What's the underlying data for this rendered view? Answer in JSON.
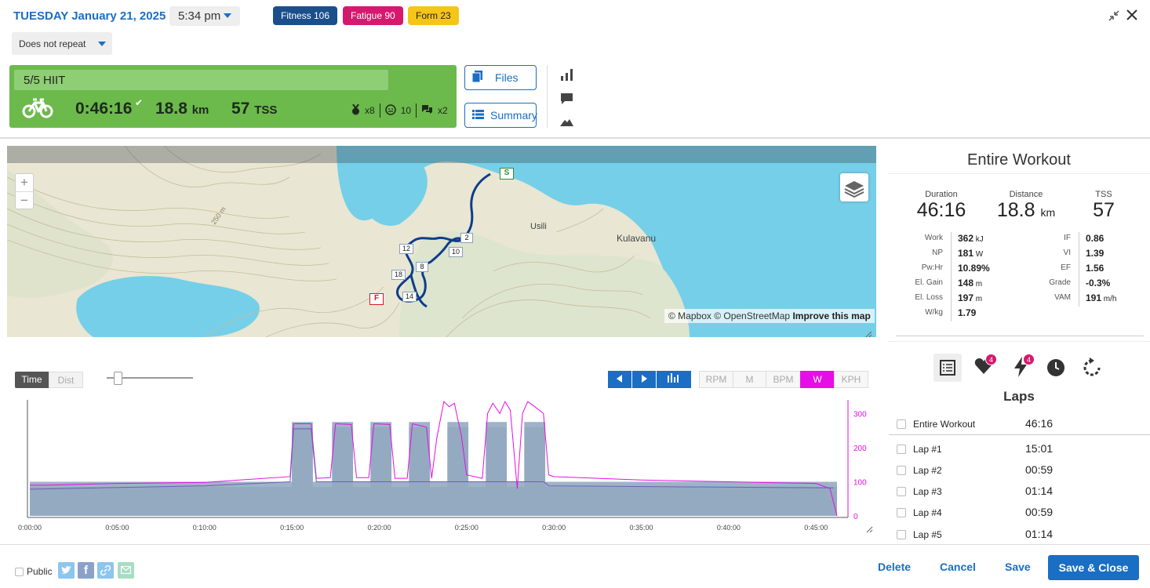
{
  "header": {
    "date": "TUESDAY January 21, 2025",
    "time": "5:34 pm",
    "badges": {
      "fitness": "Fitness 106",
      "fatigue": "Fatigue 90",
      "form": "Form 23"
    },
    "repeat": "Does not repeat"
  },
  "workout": {
    "title": "5/5 HIIT",
    "duration": "0:46:16",
    "distance_value": "18.8",
    "distance_unit": "km",
    "tss_value": "57",
    "tss_unit": "TSS",
    "medals": "x8",
    "rpe": "10",
    "comments": "x2"
  },
  "buttons": {
    "files": "Files",
    "summary": "Summary"
  },
  "map": {
    "attribution_prefix": "© Mapbox © OpenStreetMap",
    "attribution_link": "Improve this map",
    "labels": {
      "usili": "Usili",
      "kulavanu": "Kulavanu",
      "contour": "250 m"
    },
    "start": "S",
    "finish": "F",
    "lap_markers": [
      "2",
      "10",
      "12",
      "8",
      "18",
      "14"
    ],
    "zoom_in": "+",
    "zoom_out": "−"
  },
  "chart_controls": {
    "mode_time": "Time",
    "mode_dist": "Dist",
    "units": [
      "RPM",
      "M",
      "BPM",
      "W",
      "KPH"
    ],
    "active_unit": "W",
    "active_color": "#e60ee6"
  },
  "chart_data": {
    "type": "area",
    "xlabel": "",
    "ylabel": "",
    "x_ticks": [
      "0:00:00",
      "0:05:00",
      "0:10:00",
      "0:15:00",
      "0:20:00",
      "0:25:00",
      "0:30:00",
      "0:35:00",
      "0:40:00",
      "0:45:00"
    ],
    "y_ticks": [
      "0",
      "100",
      "200",
      "300"
    ],
    "ylim": [
      0,
      340
    ],
    "xlim_min": [
      0,
      46.5
    ],
    "series": [
      {
        "type": "area",
        "color": "#9fb3c8",
        "x": [
          0,
          15,
          15,
          16.2,
          16.2,
          17.3,
          17.3,
          18.5,
          18.5,
          19.5,
          19.5,
          20.7,
          20.7,
          21.7,
          21.7,
          22.9,
          22.9,
          23.9,
          23.9,
          25.1,
          25.1,
          26.1,
          26.1,
          27.3,
          27.3,
          28.3,
          28.3,
          29.5,
          29.5,
          46.2
        ],
        "y": [
          100,
          100,
          275,
          275,
          100,
          100,
          275,
          275,
          100,
          100,
          275,
          275,
          100,
          100,
          275,
          275,
          100,
          100,
          275,
          275,
          100,
          100,
          275,
          275,
          100,
          100,
          275,
          275,
          100,
          100
        ]
      },
      {
        "type": "line",
        "color": "#e60ee6",
        "x": [
          0,
          1,
          5,
          10,
          12,
          14.9,
          15.1,
          16.1,
          16.4,
          17.2,
          17.5,
          18.4,
          18.7,
          19.4,
          19.7,
          20.6,
          20.9,
          21.6,
          21.9,
          22.7,
          23.0,
          23.3,
          23.7,
          24.0,
          24.3,
          24.7,
          25.0,
          25.9,
          26.2,
          26.5,
          26.9,
          27.2,
          27.5,
          27.9,
          28.2,
          28.5,
          28.9,
          29.4,
          29.7,
          30,
          35,
          40,
          45,
          45.8,
          46.2
        ],
        "y": [
          90,
          90,
          95,
          98,
          105,
          115,
          270,
          270,
          110,
          112,
          270,
          268,
          112,
          112,
          270,
          268,
          110,
          110,
          270,
          260,
          110,
          230,
          335,
          320,
          330,
          235,
          120,
          110,
          300,
          330,
          300,
          335,
          310,
          80,
          300,
          335,
          320,
          300,
          120,
          115,
          105,
          100,
          95,
          80,
          0
        ]
      },
      {
        "type": "line",
        "color": "#6b5fb5",
        "x": [
          0,
          10,
          14.9,
          15.1,
          16.1,
          16.4,
          29.4,
          29.7,
          46.0
        ],
        "y": [
          78,
          88,
          100,
          255,
          255,
          100,
          100,
          88,
          82
        ]
      }
    ]
  },
  "summary": {
    "title": "Entire Workout",
    "duration_label": "Duration",
    "duration": "46:16",
    "distance_label": "Distance",
    "distance_value": "18.8",
    "distance_unit": "km",
    "tss_label": "TSS",
    "tss": "57",
    "left_metrics": [
      {
        "label": "Work",
        "value": "362",
        "unit": "kJ"
      },
      {
        "label": "NP",
        "value": "181",
        "unit": "W"
      },
      {
        "label": "Pw:Hr",
        "value": "10.89%",
        "unit": ""
      },
      {
        "label": "El. Gain",
        "value": "148",
        "unit": "m"
      },
      {
        "label": "El. Loss",
        "value": "197",
        "unit": "m"
      },
      {
        "label": "W/kg",
        "value": "1.79",
        "unit": ""
      }
    ],
    "right_metrics": [
      {
        "label": "IF",
        "value": "0.86",
        "unit": ""
      },
      {
        "label": "VI",
        "value": "1.39",
        "unit": ""
      },
      {
        "label": "EF",
        "value": "1.56",
        "unit": ""
      },
      {
        "label": "Grade",
        "value": "-0.3%",
        "unit": ""
      },
      {
        "label": "VAM",
        "value": "191",
        "unit": "m/h"
      }
    ],
    "heart_count": "4",
    "power_count": "4"
  },
  "laps": {
    "title": "Laps",
    "rows": [
      {
        "name": "Entire Workout",
        "time": "46:16"
      },
      {
        "name": "Lap #1",
        "time": "15:01"
      },
      {
        "name": "Lap #2",
        "time": "00:59"
      },
      {
        "name": "Lap #3",
        "time": "01:14"
      },
      {
        "name": "Lap #4",
        "time": "00:59"
      },
      {
        "name": "Lap #5",
        "time": "01:14"
      }
    ]
  },
  "footer": {
    "public": "Public",
    "delete": "Delete",
    "cancel": "Cancel",
    "save": "Save",
    "save_close": "Save & Close"
  },
  "colors": {
    "accent": "#1a6ec4",
    "workout_green": "#6cb94c",
    "fitness": "#1b4f8c",
    "fatigue": "#d6196e",
    "form": "#f5c518"
  }
}
